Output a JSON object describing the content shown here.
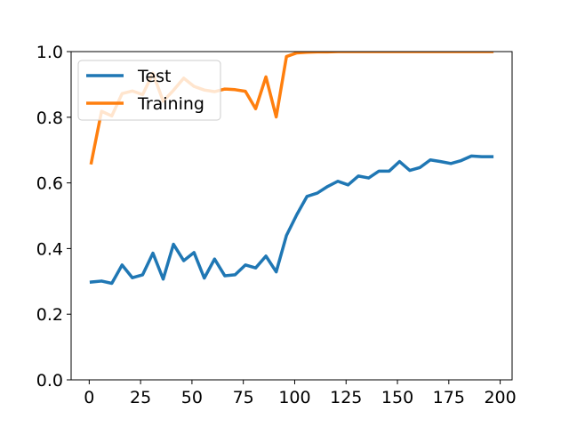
{
  "chart_data": {
    "type": "line",
    "title": "",
    "xlabel": "",
    "ylabel": "",
    "xlim": [
      -8.8,
      205.8
    ],
    "ylim": [
      0.0,
      1.0
    ],
    "xticks": [
      0,
      25,
      50,
      75,
      100,
      125,
      150,
      175,
      200
    ],
    "yticks": [
      0.0,
      0.2,
      0.4,
      0.6,
      0.8,
      1.0
    ],
    "xtick_labels": [
      "0",
      "25",
      "50",
      "75",
      "100",
      "125",
      "150",
      "175",
      "200"
    ],
    "ytick_labels": [
      "0.0",
      "0.2",
      "0.4",
      "0.6",
      "0.8",
      "1.0"
    ],
    "grid": false,
    "legend_position": "upper-left",
    "series": [
      {
        "name": "Test",
        "color": "#1f77b4",
        "x": [
          1,
          6,
          11,
          16,
          21,
          26,
          31,
          36,
          41,
          46,
          51,
          56,
          61,
          66,
          71,
          76,
          81,
          86,
          91,
          96,
          101,
          106,
          111,
          116,
          121,
          126,
          131,
          136,
          141,
          146,
          151,
          156,
          161,
          166,
          171,
          176,
          181,
          186,
          191,
          196
        ],
        "y": [
          0.298,
          0.301,
          0.294,
          0.35,
          0.311,
          0.32,
          0.386,
          0.307,
          0.413,
          0.363,
          0.388,
          0.31,
          0.368,
          0.317,
          0.32,
          0.35,
          0.341,
          0.377,
          0.329,
          0.44,
          0.503,
          0.559,
          0.569,
          0.589,
          0.605,
          0.594,
          0.621,
          0.615,
          0.636,
          0.636,
          0.665,
          0.638,
          0.647,
          0.67,
          0.665,
          0.659,
          0.668,
          0.682,
          0.68,
          0.68
        ]
      },
      {
        "name": "Training",
        "color": "#ff7f0e",
        "x": [
          1,
          6,
          11,
          16,
          21,
          26,
          31,
          36,
          41,
          46,
          51,
          56,
          61,
          66,
          71,
          76,
          81,
          86,
          91,
          96,
          101,
          106,
          111,
          116,
          121,
          126,
          131,
          136,
          141,
          146,
          151,
          156,
          161,
          166,
          171,
          176,
          181,
          186,
          191,
          196
        ],
        "y": [
          0.661,
          0.818,
          0.804,
          0.872,
          0.88,
          0.869,
          0.934,
          0.849,
          0.882,
          0.919,
          0.894,
          0.883,
          0.878,
          0.886,
          0.884,
          0.879,
          0.826,
          0.923,
          0.801,
          0.985,
          0.996,
          0.998,
          0.999,
          0.999,
          1.0,
          1.0,
          1.0,
          1.0,
          1.0,
          1.0,
          1.0,
          1.0,
          1.0,
          1.0,
          1.0,
          1.0,
          1.0,
          1.0,
          1.0,
          1.0
        ]
      }
    ]
  }
}
